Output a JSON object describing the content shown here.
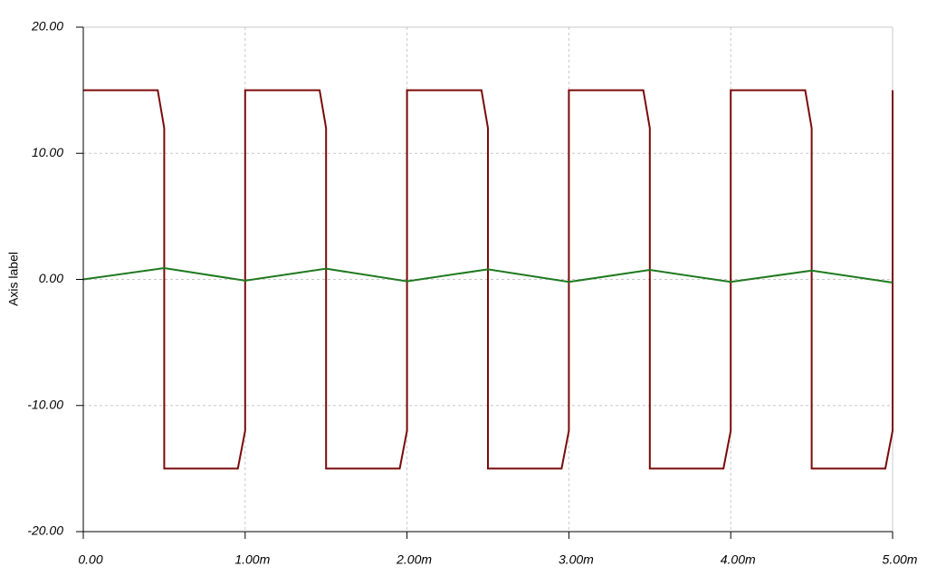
{
  "chart_data": {
    "type": "line",
    "ylabel": "Axis label",
    "xlim": [
      0,
      0.005
    ],
    "ylim": [
      -20,
      20
    ],
    "xticks": [
      {
        "value": 0,
        "label": "0.00"
      },
      {
        "value": 0.001,
        "label": "1.00m"
      },
      {
        "value": 0.002,
        "label": "2.00m"
      },
      {
        "value": 0.003,
        "label": "3.00m"
      },
      {
        "value": 0.004,
        "label": "4.00m"
      },
      {
        "value": 0.005,
        "label": "5.00m"
      }
    ],
    "yticks": [
      {
        "value": 20,
        "label": "20.00"
      },
      {
        "value": 10,
        "label": "10.00"
      },
      {
        "value": 0,
        "label": "0.00"
      },
      {
        "value": -10,
        "label": "-10.00"
      },
      {
        "value": -20,
        "label": "-20.00"
      }
    ],
    "grid": true,
    "series": [
      {
        "color": "#7a0a0a",
        "x": [
          0,
          0.00046,
          0.0005,
          0.0005,
          0.000955,
          0.001,
          0.001,
          0.00146,
          0.0015,
          0.0015,
          0.001955,
          0.002,
          0.002,
          0.00246,
          0.0025,
          0.0025,
          0.002955,
          0.003,
          0.003,
          0.00346,
          0.0035,
          0.0035,
          0.003955,
          0.004,
          0.004,
          0.00446,
          0.0045,
          0.0045,
          0.004955,
          0.005,
          0.005
        ],
        "values": [
          15,
          15,
          12,
          -15,
          -15,
          -12,
          15,
          15,
          12,
          -15,
          -15,
          -12,
          15,
          15,
          12,
          -15,
          -15,
          -12,
          15,
          15,
          12,
          -15,
          -15,
          -12,
          15,
          15,
          12,
          -15,
          -15,
          -12,
          15
        ]
      },
      {
        "color": "#1f7a1f",
        "x": [
          0,
          0.0005,
          0.001,
          0.0015,
          0.002,
          0.0025,
          0.003,
          0.0035,
          0.004,
          0.0045,
          0.005
        ],
        "values": [
          0,
          0.9,
          -0.1,
          0.85,
          -0.15,
          0.8,
          -0.2,
          0.75,
          -0.2,
          0.7,
          -0.25
        ]
      }
    ]
  }
}
